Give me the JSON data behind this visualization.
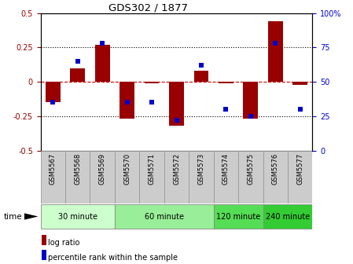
{
  "title": "GDS302 / 1877",
  "samples": [
    "GSM5567",
    "GSM5568",
    "GSM5569",
    "GSM5570",
    "GSM5571",
    "GSM5572",
    "GSM5573",
    "GSM5574",
    "GSM5575",
    "GSM5576",
    "GSM5577"
  ],
  "log_ratio": [
    -0.15,
    0.1,
    0.27,
    -0.27,
    -0.01,
    -0.32,
    0.08,
    -0.01,
    -0.27,
    0.44,
    -0.02
  ],
  "percentile_rank": [
    35,
    65,
    78,
    35,
    35,
    22,
    62,
    30,
    25,
    78,
    30
  ],
  "bar_color": "#990000",
  "dot_color": "#0000cc",
  "ylim_left": [
    -0.5,
    0.5
  ],
  "ylim_right": [
    0,
    100
  ],
  "yticks_left": [
    -0.5,
    -0.25,
    0,
    0.25,
    0.5
  ],
  "yticks_right": [
    0,
    25,
    50,
    75,
    100
  ],
  "yticklabels_right": [
    "0",
    "25",
    "50",
    "75",
    "100%"
  ],
  "hlines": [
    0.25,
    -0.25
  ],
  "hline_zero_color": "#cc0000",
  "hline_dotted_color": "black",
  "groups": [
    {
      "label": "30 minute",
      "samples": [
        "GSM5567",
        "GSM5568",
        "GSM5569"
      ],
      "color": "#ccffcc"
    },
    {
      "label": "60 minute",
      "samples": [
        "GSM5570",
        "GSM5571",
        "GSM5572",
        "GSM5573"
      ],
      "color": "#99ee99"
    },
    {
      "label": "120 minute",
      "samples": [
        "GSM5574",
        "GSM5575"
      ],
      "color": "#55dd55"
    },
    {
      "label": "240 minute",
      "samples": [
        "GSM5576",
        "GSM5577"
      ],
      "color": "#33cc33"
    }
  ],
  "time_label": "time",
  "legend_log_ratio": "log ratio",
  "legend_percentile": "percentile rank within the sample",
  "bg_color": "white",
  "plot_bg_color": "white",
  "tick_bg_color": "#cccccc",
  "tick_edge_color": "#999999"
}
